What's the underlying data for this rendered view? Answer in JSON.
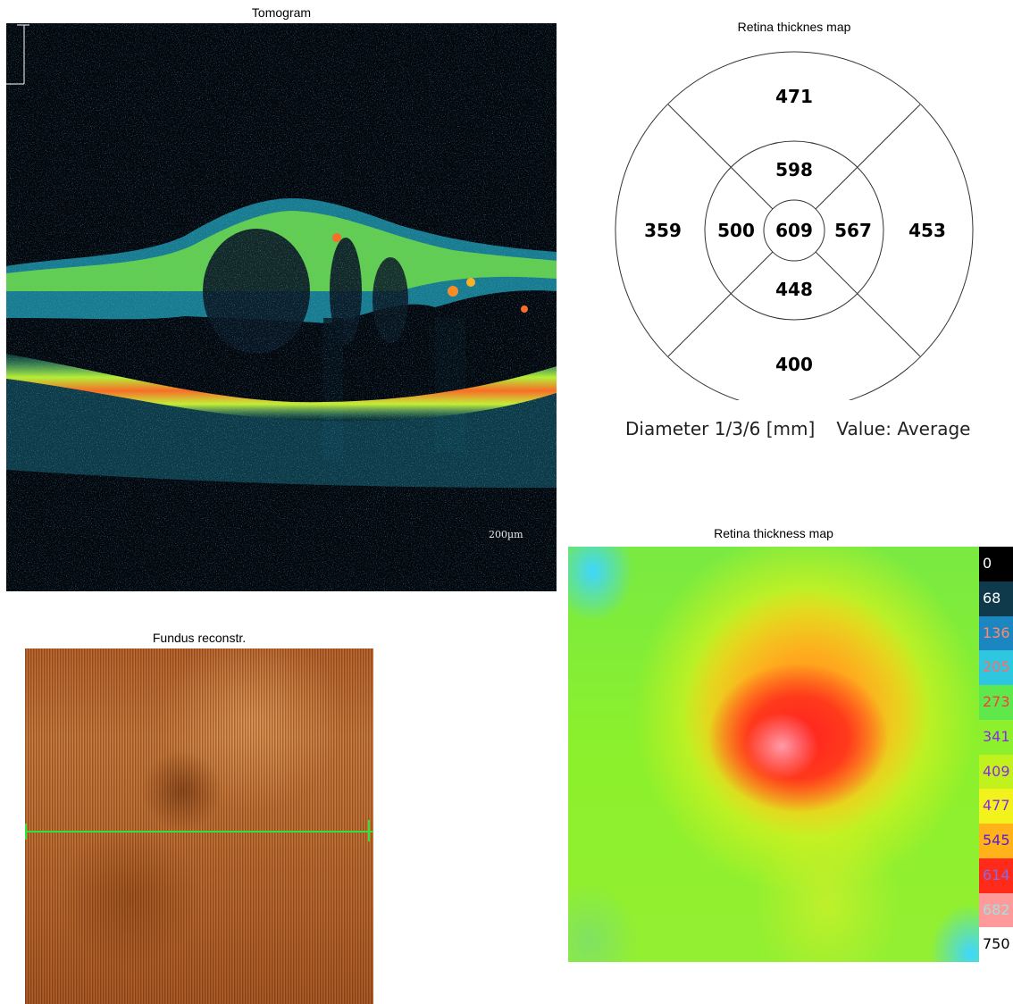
{
  "tomogram": {
    "title": "Tomogram",
    "scale_label": "200µm"
  },
  "fundus": {
    "title": "Fundus reconstr."
  },
  "etdrs": {
    "title": "Retina thicknes map",
    "sectors": {
      "outer_superior": "471",
      "inner_superior": "598",
      "outer_temporal": "359",
      "inner_temporal": "500",
      "center": "609",
      "inner_nasal": "567",
      "outer_nasal": "453",
      "inner_inferior": "448",
      "outer_inferior": "400"
    },
    "caption_diameter": "Diameter 1/3/6 [mm]",
    "caption_value": "Value: Average"
  },
  "heatmap": {
    "title": "Retina thickness map",
    "legend": [
      {
        "label": "0",
        "bg": "#000000",
        "fg": "#ffffff"
      },
      {
        "label": "68",
        "bg": "#0e3a4c",
        "fg": "#ffffff"
      },
      {
        "label": "136",
        "bg": "#1b86c0",
        "fg": "#ff8a70"
      },
      {
        "label": "205",
        "bg": "#2fc7df",
        "fg": "#ff6a6a"
      },
      {
        "label": "273",
        "bg": "#5ee84c",
        "fg": "#ff3a3a"
      },
      {
        "label": "341",
        "bg": "#8cf02c",
        "fg": "#8a2be2"
      },
      {
        "label": "409",
        "bg": "#c2f21e",
        "fg": "#8a2be2"
      },
      {
        "label": "477",
        "bg": "#f2f21c",
        "fg": "#8a2be2"
      },
      {
        "label": "545",
        "bg": "#ffb21a",
        "fg": "#5a20c8"
      },
      {
        "label": "614",
        "bg": "#ff2a1a",
        "fg": "#8a6ae0"
      },
      {
        "label": "682",
        "bg": "#ff9a9a",
        "fg": "#a0e0e0"
      },
      {
        "label": "750",
        "bg": "#ffffff",
        "fg": "#000000"
      }
    ]
  }
}
